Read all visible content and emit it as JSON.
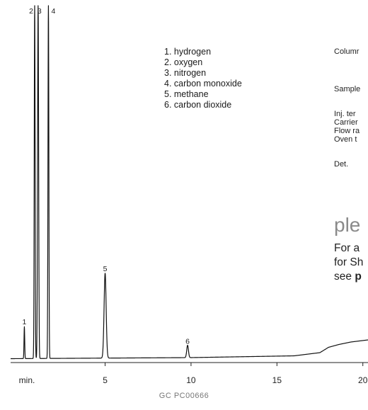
{
  "chart_data": {
    "type": "line",
    "xlabel": "min.",
    "x_ticks": [
      5,
      10,
      15,
      20
    ],
    "x_tick_labels": [
      "5",
      "10",
      "15",
      "20"
    ],
    "xlim": [
      -0.5,
      20.3
    ],
    "ylim": [
      0,
      100
    ],
    "grid": false,
    "series": [
      {
        "baseline": [
          [
            -0.5,
            0.3
          ],
          [
            10,
            0.6
          ],
          [
            16,
            1.1
          ],
          [
            17.5,
            2.0
          ],
          [
            18,
            3.5
          ],
          [
            18.6,
            4.3
          ],
          [
            19.3,
            5.0
          ],
          [
            20.3,
            5.6
          ]
        ],
        "peaks": [
          {
            "label": "1",
            "x": 0.3,
            "height": 9.0,
            "width": 0.02
          },
          {
            "label": "2",
            "x": 0.9,
            "height": 100,
            "width": 0.025
          },
          {
            "label": "3",
            "x": 1.1,
            "height": 100,
            "width": 0.03
          },
          {
            "label": "4",
            "x": 1.7,
            "height": 100,
            "width": 0.025
          },
          {
            "label": "5",
            "x": 5.0,
            "height": 24,
            "width": 0.06
          },
          {
            "label": "6",
            "x": 9.8,
            "height": 3.5,
            "width": 0.05
          }
        ]
      }
    ]
  },
  "legend": [
    "1. hydrogen",
    "2. oxygen",
    "3. nitrogen",
    "4. carbon monoxide",
    "5. methane",
    "6. carbon dioxide"
  ],
  "conditions": {
    "column": "Columr",
    "sample": "Sample",
    "inj_temp": "Inj. ter",
    "carrier": "Carrier",
    "flow_rate": "Flow ra",
    "oven_temp": "Oven t",
    "det": "Det."
  },
  "partial_heading": "ple",
  "note": {
    "line1": "For a",
    "line2": "for Sh",
    "line3_prefix": "see ",
    "line3_bold": "p"
  },
  "footer": "GC PC00666"
}
